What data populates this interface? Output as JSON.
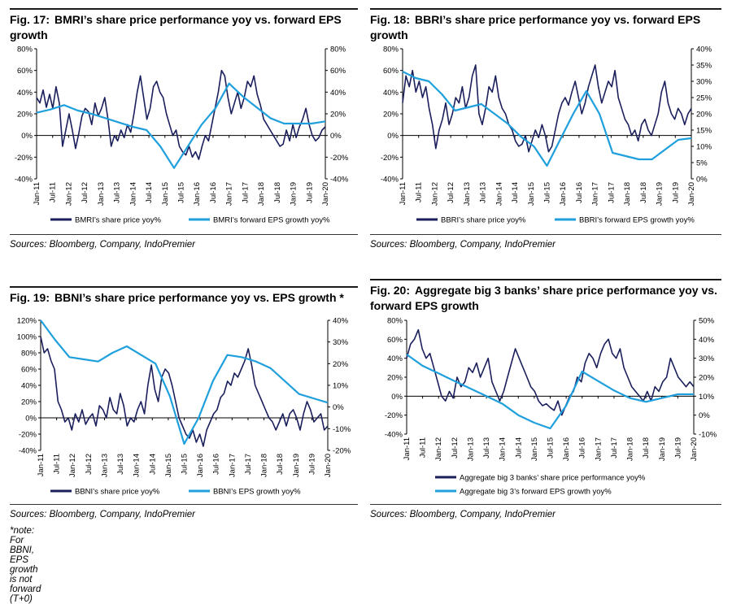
{
  "colors": {
    "share": "#1a1f5c",
    "eps": "#1fa0dc"
  },
  "figures": [
    {
      "num": "Fig. 17:",
      "title": "BMRI’s share price performance yoy vs. forward EPS growth",
      "source": "Sources: Bloomberg, Company, IndoPremier",
      "legend": [
        "BMRI’s share price yoy%",
        "BMRI’s forward EPS growth yoy%"
      ]
    },
    {
      "num": "Fig. 18:",
      "title": "BBRI’s share price performance yoy vs. forward EPS growth",
      "source": "Sources: Bloomberg, Company, IndoPremier",
      "legend": [
        "BBRI’s share price yoy%",
        "BBRI’s forward EPS growth yoy%"
      ]
    },
    {
      "num": "Fig. 19:",
      "title": "BBNI’s share price performance yoy vs. EPS growth *",
      "source": "Sources: Bloomberg, Company, IndoPremier",
      "note": "*note: For BBNI, EPS growth is not forward (T+0)",
      "legend": [
        "BBNI’s share price yoy%",
        "BBNI’s EPS growth yoy%"
      ]
    },
    {
      "num": "Fig. 20:",
      "title": "Aggregate big 3 banks’ share price performance yoy vs. forward EPS growth",
      "source": "Sources: Bloomberg, Company, IndoPremier",
      "legend": [
        "Aggregate big 3 banks’ share price performance yoy%",
        "Aggregate big 3’s forward EPS growth yoy%"
      ]
    }
  ],
  "chart_data": [
    {
      "type": "line",
      "title": "BMRI’s share price performance yoy vs. forward EPS growth",
      "x_labels": [
        "Jan-11",
        "Jul-11",
        "Jan-12",
        "Jul-12",
        "Jan-13",
        "Jul-13",
        "Jan-14",
        "Jul-14",
        "Jan-15",
        "Jul-15",
        "Jan-16",
        "Jul-16",
        "Jan-17",
        "Jul-17",
        "Jan-18",
        "Jul-18",
        "Jan-19",
        "Jul-19",
        "Jan-20"
      ],
      "y_left": {
        "min": -40,
        "max": 80,
        "step": 20,
        "ticks": [
          "-40%",
          "-20%",
          "0%",
          "20%",
          "40%",
          "60%",
          "80%"
        ]
      },
      "y_right": {
        "min": -40,
        "max": 80,
        "step": 20,
        "ticks": [
          "-40%",
          "-20%",
          "0%",
          "20%",
          "40%",
          "60%",
          "80%"
        ]
      },
      "series": [
        {
          "name": "BMRI’s share price yoy%",
          "axis": "left",
          "values": [
            35,
            30,
            42,
            26,
            38,
            25,
            45,
            30,
            -10,
            5,
            20,
            5,
            -12,
            2,
            18,
            25,
            22,
            10,
            30,
            18,
            25,
            35,
            15,
            -10,
            0,
            -5,
            5,
            -2,
            10,
            3,
            20,
            40,
            55,
            35,
            15,
            25,
            45,
            50,
            40,
            35,
            20,
            10,
            0,
            5,
            -10,
            -15,
            -18,
            -10,
            -20,
            -15,
            -22,
            -10,
            0,
            -5,
            10,
            25,
            40,
            60,
            55,
            35,
            20,
            30,
            40,
            25,
            35,
            50,
            45,
            55,
            38,
            28,
            15,
            10,
            5,
            0,
            -5,
            -10,
            -8,
            5,
            -5,
            10,
            -2,
            8,
            15,
            25,
            10,
            0,
            -5,
            -2,
            5,
            8
          ]
        },
        {
          "name": "BMRI’s forward EPS growth yoy%",
          "axis": "right",
          "values": [
            21,
            24,
            28,
            23,
            20,
            16,
            12,
            8,
            5,
            -10,
            -30,
            -10,
            10,
            25,
            48,
            36,
            26,
            16,
            11,
            11,
            11,
            13
          ]
        }
      ]
    },
    {
      "type": "line",
      "title": "BBRI’s share price performance yoy vs. forward EPS growth",
      "x_labels": [
        "Jan-11",
        "Jul-11",
        "Jan-12",
        "Jul-12",
        "Jan-13",
        "Jul-13",
        "Jan-14",
        "Jul-14",
        "Jan-15",
        "Jul-15",
        "Jan-16",
        "Jul-16",
        "Jan-17",
        "Jul-17",
        "Jan-18",
        "Jul-18",
        "Jan-19",
        "Jul-19",
        "Jan-20"
      ],
      "y_left": {
        "min": -40,
        "max": 80,
        "step": 20,
        "ticks": [
          "-40%",
          "-20%",
          "0%",
          "20%",
          "40%",
          "60%",
          "80%"
        ]
      },
      "y_right": {
        "min": 0,
        "max": 40,
        "step": 5,
        "ticks": [
          "0%",
          "5%",
          "10%",
          "15%",
          "20%",
          "25%",
          "30%",
          "35%",
          "40%"
        ]
      },
      "series": [
        {
          "name": "BBRI’s share price yoy%",
          "axis": "left",
          "values": [
            30,
            55,
            45,
            60,
            40,
            50,
            35,
            45,
            25,
            10,
            -12,
            5,
            15,
            30,
            10,
            20,
            35,
            30,
            45,
            25,
            35,
            55,
            65,
            20,
            10,
            25,
            45,
            40,
            55,
            35,
            25,
            20,
            10,
            5,
            -5,
            -10,
            -8,
            0,
            -15,
            -5,
            5,
            -2,
            10,
            0,
            -15,
            -10,
            5,
            20,
            30,
            35,
            28,
            40,
            50,
            35,
            20,
            30,
            45,
            55,
            65,
            45,
            30,
            40,
            50,
            45,
            60,
            35,
            25,
            15,
            10,
            0,
            5,
            -5,
            10,
            15,
            5,
            0,
            10,
            20,
            40,
            50,
            30,
            20,
            15,
            25,
            20,
            10,
            20,
            25
          ]
        },
        {
          "name": "BBRI’s forward EPS growth yoy%",
          "axis": "right",
          "values": [
            33,
            31,
            30,
            26,
            21,
            22,
            23,
            20,
            17,
            13,
            10,
            4,
            12,
            20,
            27,
            20,
            8,
            7,
            6,
            6,
            9,
            12,
            12.5
          ]
        }
      ]
    },
    {
      "type": "line",
      "title": "BBNI’s share price performance yoy vs. EPS growth *",
      "x_labels": [
        "Jan-11",
        "Jul-11",
        "Jan-12",
        "Jul-12",
        "Jan-13",
        "Jul-13",
        "Jan-14",
        "Jul-14",
        "Jan-15",
        "Jul-15",
        "Jan-16",
        "Jul-16",
        "Jan-17",
        "Jul-17",
        "Jan-18",
        "Jul-18",
        "Jan-19",
        "Jul-19",
        "Jan-20"
      ],
      "y_left": {
        "min": -40,
        "max": 120,
        "step": 20,
        "ticks": [
          "-40%",
          "-20%",
          "0%",
          "20%",
          "40%",
          "60%",
          "80%",
          "100%",
          "120%"
        ]
      },
      "y_right": {
        "min": -20,
        "max": 40,
        "step": 10,
        "ticks": [
          "-20%",
          "-10%",
          "0%",
          "10%",
          "20%",
          "30%",
          "40%"
        ]
      },
      "series": [
        {
          "name": "BBNI’s share price yoy%",
          "axis": "left",
          "values": [
            100,
            80,
            85,
            70,
            60,
            20,
            10,
            -5,
            0,
            -15,
            5,
            -5,
            10,
            -8,
            0,
            5,
            -10,
            15,
            10,
            0,
            25,
            10,
            5,
            30,
            15,
            -10,
            0,
            -5,
            10,
            20,
            5,
            40,
            65,
            35,
            20,
            50,
            60,
            55,
            40,
            20,
            0,
            -10,
            -20,
            -25,
            -15,
            -30,
            -20,
            -35,
            -15,
            -5,
            5,
            10,
            25,
            30,
            45,
            40,
            55,
            50,
            60,
            70,
            85,
            65,
            40,
            30,
            20,
            10,
            0,
            -5,
            -15,
            -5,
            5,
            -10,
            5,
            10,
            0,
            -15,
            5,
            20,
            10,
            -5,
            0,
            5,
            -15,
            -10
          ]
        },
        {
          "name": "BBNI’s EPS growth yoy%",
          "axis": "right",
          "values": [
            40,
            31,
            23,
            22,
            21,
            25,
            28,
            24,
            20,
            5,
            -17,
            -5,
            12,
            24,
            23,
            21,
            18,
            12,
            6,
            4,
            2
          ]
        }
      ]
    },
    {
      "type": "line",
      "title": "Aggregate big 3 banks’ share price performance yoy vs. forward EPS growth",
      "x_labels": [
        "Jan-11",
        "Jul-11",
        "Jan-12",
        "Jul-12",
        "Jan-13",
        "Jul-13",
        "Jan-14",
        "Jul-14",
        "Jan-15",
        "Jul-15",
        "Jan-16",
        "Jul-16",
        "Jan-17",
        "Jul-17",
        "Jan-18",
        "Jul-18",
        "Jan-19",
        "Jul-19",
        "Jan-20"
      ],
      "y_left": {
        "min": -40,
        "max": 80,
        "step": 20,
        "ticks": [
          "-40%",
          "-20%",
          "0%",
          "20%",
          "40%",
          "60%",
          "80%"
        ]
      },
      "y_right": {
        "min": -10,
        "max": 50,
        "step": 10,
        "ticks": [
          "-10%",
          "0%",
          "10%",
          "20%",
          "30%",
          "40%",
          "50%"
        ]
      },
      "series": [
        {
          "name": "Aggregate big 3 banks’ share price performance yoy%",
          "axis": "left",
          "values": [
            40,
            55,
            60,
            70,
            50,
            40,
            45,
            30,
            15,
            0,
            -5,
            5,
            -2,
            20,
            10,
            15,
            30,
            25,
            35,
            20,
            30,
            40,
            15,
            5,
            -5,
            5,
            20,
            35,
            50,
            40,
            30,
            20,
            10,
            5,
            -5,
            -10,
            -8,
            -12,
            -15,
            -5,
            -20,
            -10,
            0,
            5,
            20,
            15,
            35,
            45,
            40,
            30,
            45,
            55,
            60,
            45,
            40,
            50,
            30,
            20,
            10,
            5,
            0,
            -5,
            5,
            -5,
            10,
            5,
            15,
            20,
            40,
            30,
            20,
            15,
            10,
            15,
            10
          ]
        },
        {
          "name": "Aggregate big 3’s forward EPS growth yoy%",
          "axis": "right",
          "values": [
            32,
            26,
            22,
            18,
            14,
            10,
            6,
            0,
            -4,
            -7,
            5,
            23,
            18,
            13,
            9,
            7,
            9,
            11,
            11
          ]
        }
      ]
    }
  ]
}
